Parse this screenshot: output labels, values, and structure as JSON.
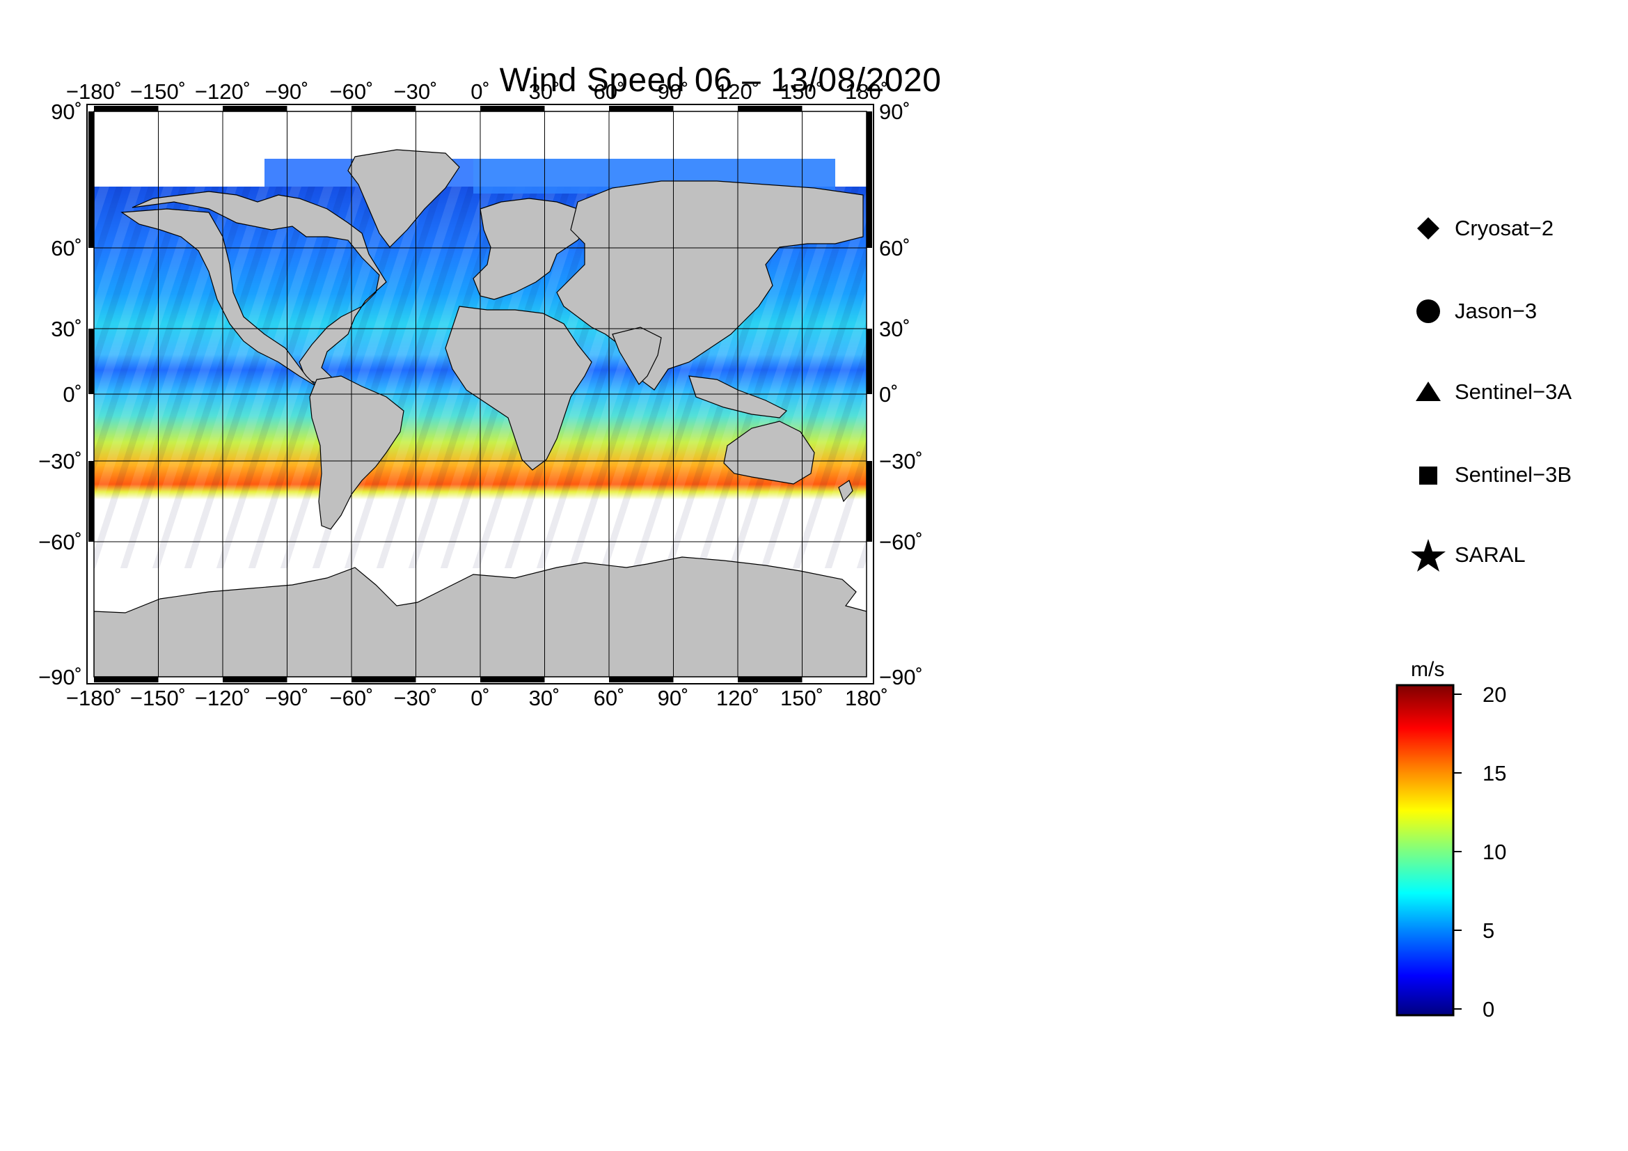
{
  "title": "Wind Speed 06 – 13/08/2020",
  "axes": {
    "x_ticks": [
      "−180˚",
      "−150˚",
      "−120˚",
      "−90˚",
      "−60˚",
      "−30˚",
      "0˚",
      "30˚",
      "60˚",
      "90˚",
      "120˚",
      "150˚",
      "180˚"
    ],
    "y_ticks": [
      "90˚",
      "60˚",
      "30˚",
      "0˚",
      "−30˚",
      "−60˚",
      "−90˚"
    ],
    "x_range": [
      -180,
      180
    ],
    "y_range": [
      -90,
      90
    ],
    "gridlines": true
  },
  "legend": {
    "placement": "right",
    "items": [
      {
        "symbol": "diamond-icon",
        "label": "Cryosat−2"
      },
      {
        "symbol": "circle-icon",
        "label": "Jason−3"
      },
      {
        "symbol": "triangle-icon",
        "label": "Sentinel−3A"
      },
      {
        "symbol": "square-icon",
        "label": "Sentinel−3B"
      },
      {
        "symbol": "star-icon",
        "label": "SARAL"
      }
    ]
  },
  "colorbar": {
    "unit": "m/s",
    "ticks": [
      "20",
      "15",
      "10",
      "5",
      "0"
    ],
    "range": [
      0,
      20
    ],
    "colors": [
      "#00007f",
      "#0000ff",
      "#007fff",
      "#00ffff",
      "#7fff7f",
      "#ffff00",
      "#ff7f00",
      "#ff0000",
      "#7f0000"
    ]
  },
  "colors": {
    "land": "#c0c0c0",
    "ice": "#ffffff",
    "frame": "#000000"
  }
}
